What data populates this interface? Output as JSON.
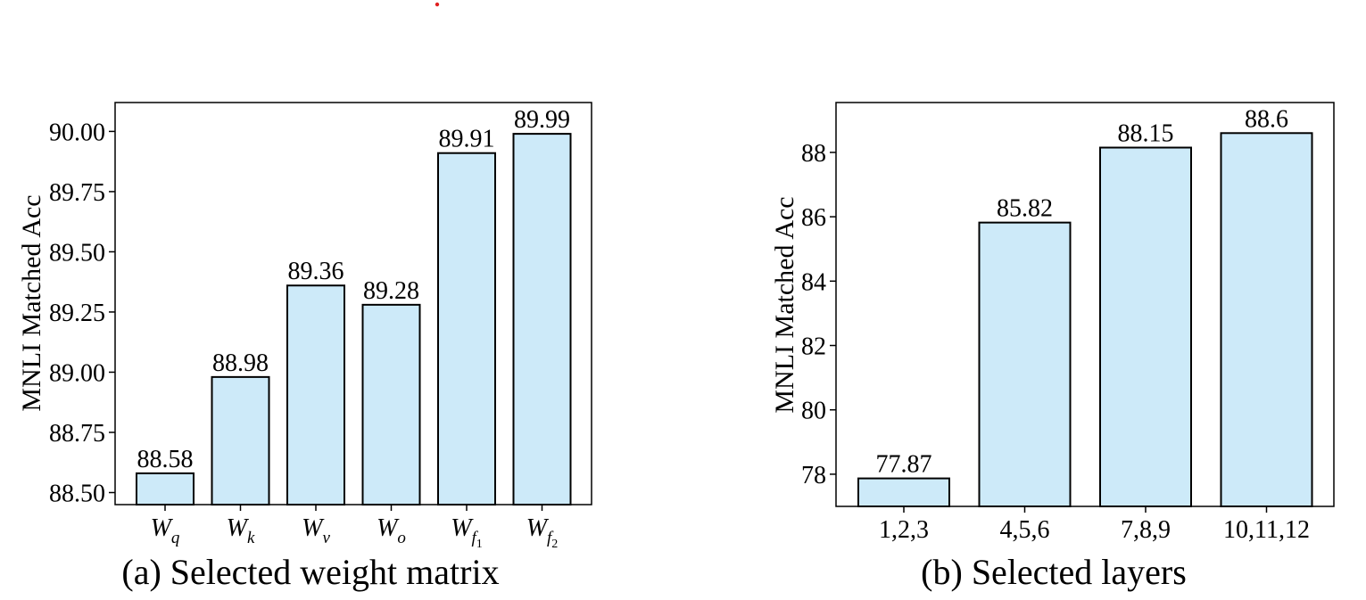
{
  "chart_data": [
    {
      "type": "bar",
      "caption": "(a) Selected weight matrix",
      "ylabel": "MNLI Matched Acc",
      "xlabel": "",
      "categories": [
        {
          "base": "W",
          "sub": "q",
          "subsub": ""
        },
        {
          "base": "W",
          "sub": "k",
          "subsub": ""
        },
        {
          "base": "W",
          "sub": "v",
          "subsub": ""
        },
        {
          "base": "W",
          "sub": "o",
          "subsub": ""
        },
        {
          "base": "W",
          "sub": "f",
          "subsub": "1"
        },
        {
          "base": "W",
          "sub": "f",
          "subsub": "2"
        }
      ],
      "values": [
        88.58,
        88.98,
        89.36,
        89.28,
        89.91,
        89.99
      ],
      "value_labels": [
        "88.58",
        "88.98",
        "89.36",
        "89.28",
        "89.91",
        "89.99"
      ],
      "yticks": [
        "88.50",
        "88.75",
        "89.00",
        "89.25",
        "89.50",
        "89.75",
        "90.00"
      ],
      "ylim": [
        88.45,
        90.12
      ],
      "grid": false,
      "bar_color": "#cdeaf9"
    },
    {
      "type": "bar",
      "caption": "(b) Selected layers",
      "ylabel": "MNLI Matched Acc",
      "xlabel": "",
      "categories": [
        "1,2,3",
        "4,5,6",
        "7,8,9",
        "10,11,12"
      ],
      "values": [
        77.87,
        85.82,
        88.15,
        88.6
      ],
      "value_labels": [
        "77.87",
        "85.82",
        "88.15",
        "88.6"
      ],
      "yticks": [
        "78",
        "80",
        "82",
        "84",
        "86",
        "88"
      ],
      "ylim": [
        77.0,
        89.55
      ],
      "grid": false,
      "bar_color": "#cdeaf9"
    }
  ]
}
